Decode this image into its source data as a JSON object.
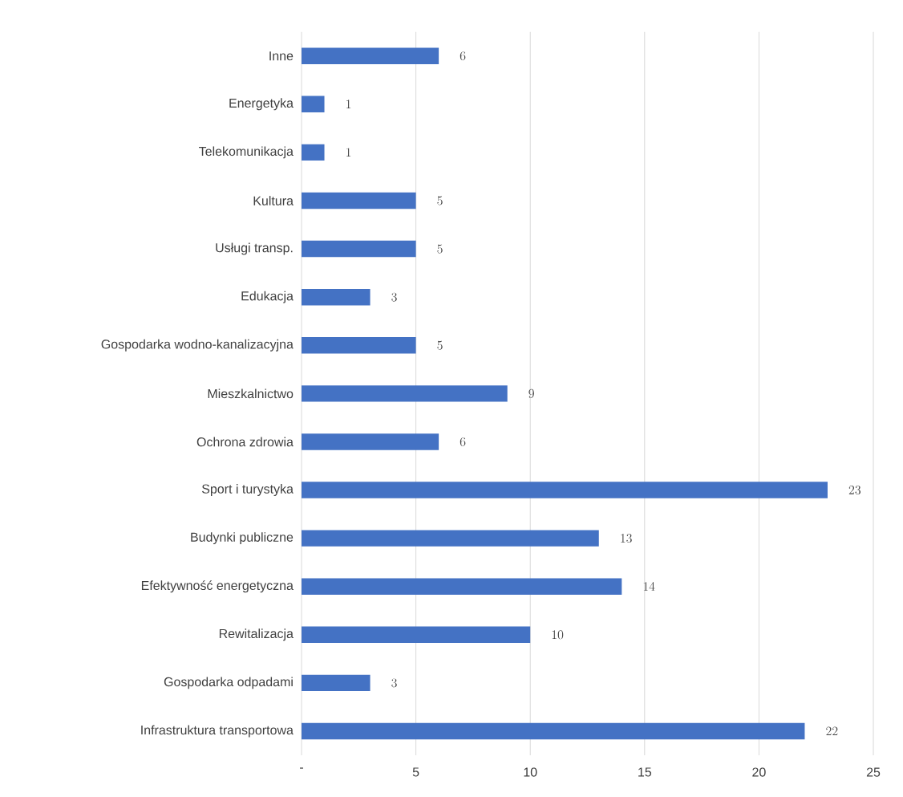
{
  "chart_data": {
    "type": "bar",
    "orientation": "horizontal",
    "categories": [
      "Inne",
      "Energetyka",
      "Telekomunikacja",
      "Kultura",
      "Usługi transp.",
      "Edukacja",
      "Gospodarka wodno-kanalizacyjna",
      "Mieszkalnictwo",
      "Ochrona zdrowia",
      "Sport i turystyka",
      "Budynki publiczne",
      "Efektywność  energetyczna",
      "Rewitalizacja",
      "Gospodarka odpadami",
      "Infrastruktura transportowa"
    ],
    "values": [
      6,
      1,
      1,
      5,
      5,
      3,
      5,
      9,
      6,
      23,
      13,
      14,
      10,
      3,
      22
    ],
    "color": "#4472c4",
    "xlim": [
      0,
      25
    ],
    "xticks": [
      {
        "value": 0,
        "label": "-"
      },
      5,
      10,
      15,
      20,
      25
    ],
    "grid": "x",
    "data_labels": true
  }
}
